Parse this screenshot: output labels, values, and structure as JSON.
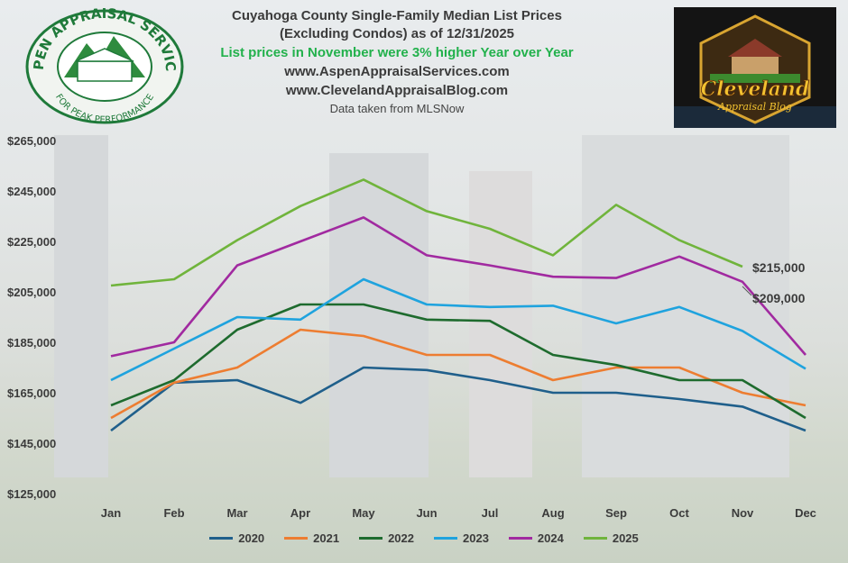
{
  "title": {
    "line1": "Cuyahoga County Single-Family Median List Prices",
    "line2": "(Excluding Condos) as of 12/31/2025",
    "line3": "List prices in November were 3% higher Year over Year",
    "line4": "www.AspenAppraisalServices.com",
    "line5": "www.ClevelandAppraisalBlog.com",
    "line6": "Data taken from MLSNow"
  },
  "logos": {
    "aspen": {
      "top": "ASPEN APPRAISAL SERVICES",
      "bottom": "FOR PEAK PERFORMANCE"
    },
    "cleveland": {
      "line1": "Cleveland",
      "line2": "Appraisal Blog"
    }
  },
  "callouts": [
    "$215,000",
    "$209,000"
  ],
  "chart_data": {
    "type": "line",
    "categories": [
      "Jan",
      "Feb",
      "Mar",
      "Apr",
      "May",
      "Jun",
      "Jul",
      "Aug",
      "Sep",
      "Oct",
      "Nov",
      "Dec"
    ],
    "yticks": [
      "$125,000",
      "$145,000",
      "$165,000",
      "$185,000",
      "$205,000",
      "$225,000",
      "$245,000",
      "$265,000"
    ],
    "ylim": [
      125000,
      265000
    ],
    "grid": false,
    "legend_position": "bottom",
    "series": [
      {
        "name": "2020",
        "color": "#1f5f8b",
        "values": [
          150000,
          169000,
          170000,
          161000,
          175000,
          174000,
          170000,
          165000,
          165000,
          162500,
          159500,
          150000
        ]
      },
      {
        "name": "2021",
        "color": "#ed7d31",
        "values": [
          155000,
          169000,
          175000,
          190000,
          187500,
          180000,
          180000,
          170000,
          175000,
          175000,
          165000,
          160000
        ]
      },
      {
        "name": "2022",
        "color": "#1e6b2e",
        "values": [
          160000,
          170000,
          190000,
          200000,
          200000,
          194000,
          193500,
          180000,
          176000,
          170000,
          170000,
          155000
        ]
      },
      {
        "name": "2023",
        "color": "#1fa3de",
        "values": [
          170000,
          182500,
          195000,
          194000,
          210000,
          200000,
          199000,
          199500,
          192500,
          199000,
          189500,
          174500
        ]
      },
      {
        "name": "2024",
        "color": "#a12aa0",
        "values": [
          179500,
          185000,
          215500,
          225000,
          234500,
          219500,
          215500,
          211000,
          210500,
          219000,
          209000,
          180000
        ]
      },
      {
        "name": "2025",
        "color": "#70b43c",
        "values": [
          207500,
          210000,
          225500,
          239000,
          249500,
          237000,
          230000,
          219500,
          239500,
          225500,
          215000,
          null
        ]
      }
    ]
  }
}
